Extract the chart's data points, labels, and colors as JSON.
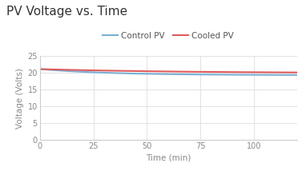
{
  "title": "PV Voltage vs. Time",
  "xlabel": "Time (min)",
  "ylabel": "Voltage (Volts)",
  "xlim": [
    0,
    120
  ],
  "ylim": [
    0,
    25
  ],
  "xticks": [
    0,
    25,
    50,
    75,
    100
  ],
  "yticks": [
    0,
    5,
    10,
    15,
    20,
    25
  ],
  "control_pv_color": "#7bafd4",
  "cooled_pv_color": "#e05c5c",
  "legend_labels": [
    "Control PV",
    "Cooled PV"
  ],
  "background_color": "#ffffff",
  "grid_color": "#dddddd",
  "title_fontsize": 11,
  "axis_label_fontsize": 7.5,
  "tick_fontsize": 7,
  "legend_fontsize": 7.5,
  "control_start": 21.1,
  "control_end": 19.3,
  "cooled_start": 21.1,
  "cooled_end": 19.9,
  "control_decay": 0.03,
  "cooled_decay": 0.015
}
